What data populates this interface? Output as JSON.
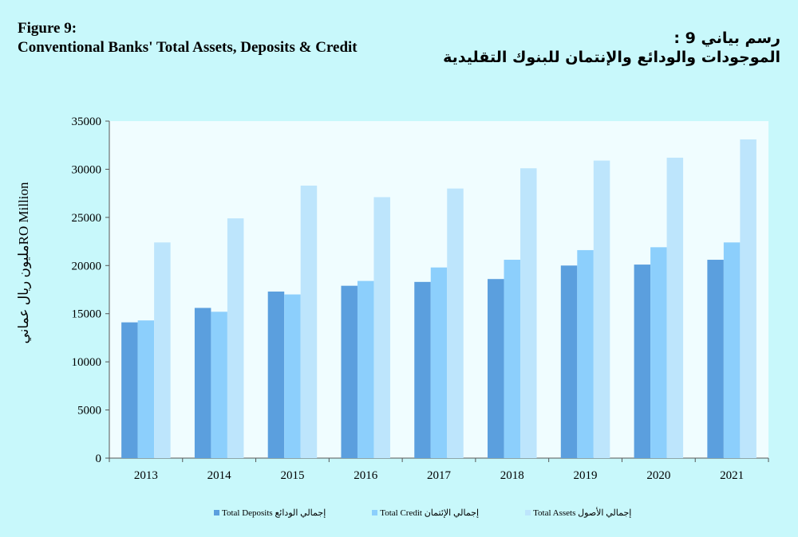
{
  "title_en": [
    "Figure 9:",
    "Conventional Banks' Total Assets, Deposits & Credit"
  ],
  "title_ar": [
    "رسم بياني 9 :",
    "الموجودات والودائع والإنتمان للبنوك التقليدية"
  ],
  "chart_data": {
    "type": "bar",
    "ylabel": "مليون ريال عمانيRO Million",
    "ylim": [
      0,
      35000
    ],
    "yticks": [
      0,
      5000,
      10000,
      15000,
      20000,
      25000,
      30000,
      35000
    ],
    "categories": [
      "2013",
      "2014",
      "2015",
      "2016",
      "2017",
      "2018",
      "2019",
      "2020",
      "2021"
    ],
    "grid": false,
    "legend_position": "bottom",
    "series": [
      {
        "name": "Total Deposits إجمالي الودائع",
        "color": "#5b9fde",
        "values": [
          14100,
          15600,
          17300,
          17900,
          18300,
          18600,
          20000,
          20100,
          20600
        ]
      },
      {
        "name": "Total Credit إجمالي الإئتمان",
        "color": "#8ccffc",
        "values": [
          14300,
          15200,
          17000,
          18400,
          19800,
          20600,
          21600,
          21900,
          22400
        ]
      },
      {
        "name": "Total Assets إجمالي الأصول",
        "color": "#bde5fc",
        "values": [
          22400,
          24900,
          28300,
          27100,
          28000,
          30100,
          30900,
          31200,
          33100
        ]
      }
    ]
  }
}
